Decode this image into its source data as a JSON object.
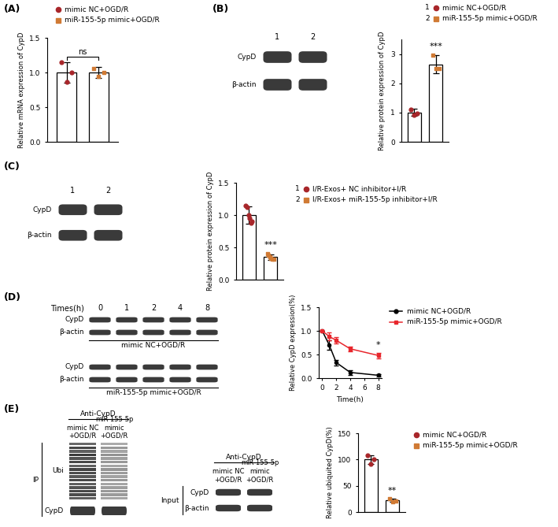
{
  "chart_data": [
    {
      "type": "bar",
      "panel": "(A)",
      "ylabel": "Relative mRNA expression of CypD",
      "categories": [
        null,
        null
      ],
      "ylim": [
        0,
        1.5
      ],
      "yticks": [
        {
          "value": 0,
          "label": "0.0"
        },
        0.5,
        {
          "value": 1,
          "label": "1.0"
        },
        1.5
      ],
      "tick_labels": "y",
      "annotation": {
        "text": "ns",
        "over": [
          0,
          1
        ]
      },
      "series": [
        {
          "name": "mimic NC+OGD/R",
          "color": "#a8262a",
          "marker": "circle",
          "values": [
            1.0,
            null
          ],
          "errors": [
            0.15,
            null
          ],
          "points": [
            [
              1.15,
              0.86,
              1.0
            ],
            null
          ]
        },
        {
          "name": "miR-155-5p mimic+OGD/R",
          "color": "#d07a34",
          "marker": "square",
          "values": [
            null,
            1.0
          ],
          "errors": [
            null,
            0.08
          ],
          "points": [
            null,
            [
              1.06,
              0.94,
              1.0
            ]
          ]
        }
      ]
    },
    {
      "type": "bar",
      "panel": "(B)",
      "ylabel": "Relative protein expression of CypD",
      "categories": [
        null,
        null
      ],
      "ylim": [
        0,
        3.5
      ],
      "yticks": [
        0,
        1,
        2,
        3
      ],
      "tick_labels": "y",
      "annotation": {
        "text": "***",
        "over": [
          1
        ]
      },
      "series": [
        {
          "name": "mimic NC+OGD/R",
          "lane": "1",
          "color": "#a8262a",
          "marker": "circle",
          "values": [
            1.0,
            null
          ],
          "errors": [
            0.12,
            null
          ],
          "points": [
            [
              1.1,
              0.92,
              0.98
            ],
            null
          ]
        },
        {
          "name": "miR-155-5p mimic+OGD/R",
          "lane": "2",
          "color": "#d07a34",
          "marker": "square",
          "values": [
            null,
            2.65
          ],
          "errors": [
            null,
            0.3
          ],
          "points": [
            null,
            [
              2.95,
              2.5,
              2.5
            ]
          ]
        }
      ]
    },
    {
      "type": "bar",
      "panel": "(C)",
      "ylabel": "Relative protein expression of CypD",
      "categories": [
        null,
        null
      ],
      "ylim": [
        0,
        1.5
      ],
      "yticks": [
        {
          "value": 0,
          "label": "0.0"
        },
        0.5,
        {
          "value": 1,
          "label": "1.0"
        },
        1.5
      ],
      "tick_labels": "y",
      "annotation": {
        "text": "***",
        "over": [
          1
        ]
      },
      "series": [
        {
          "name": "I/R-Exos+ NC inhibitor+I/R",
          "lane": "1",
          "color": "#a8262a",
          "marker": "circle",
          "values": [
            1.0,
            null
          ],
          "errors": [
            0.13,
            null
          ],
          "points": [
            [
              1.15,
              1.12,
              1.0,
              0.95,
              0.88,
              0.9
            ],
            null
          ]
        },
        {
          "name": "I/R-Exos+ miR-155-5p inhibitor+I/R",
          "lane": "2",
          "color": "#d07a34",
          "marker": "square",
          "values": [
            null,
            0.35
          ],
          "errors": [
            null,
            0.04
          ],
          "points": [
            null,
            [
              0.4,
              0.38,
              0.35,
              0.33,
              0.32,
              0.32
            ]
          ]
        }
      ]
    },
    {
      "type": "line",
      "panel": "(D)",
      "xlabel": "Time(h)",
      "ylabel": "Relative CypD expression(%)",
      "x": [
        0,
        1,
        2,
        4,
        8
      ],
      "xlim": [
        -0.5,
        8.5
      ],
      "xticks": [
        0,
        2,
        4,
        6,
        8
      ],
      "ylim": [
        0,
        1.5
      ],
      "yticks": [
        {
          "value": 0,
          "label": "0.0"
        },
        0.5,
        {
          "value": 1,
          "label": "1.0"
        },
        1.5
      ],
      "annotation": {
        "text": "*",
        "over": [
          4
        ]
      },
      "series": [
        {
          "name": "mimic NC+OGD/R",
          "color": "#000000",
          "marker": "circle",
          "values": [
            1.0,
            0.7,
            0.33,
            0.12,
            0.06
          ],
          "errors": [
            0,
            0.1,
            0.06,
            0.05,
            0.03
          ]
        },
        {
          "name": "miR-155-5p mimic+OGD/R",
          "color": "#e8262c",
          "marker": "square",
          "values": [
            1.0,
            0.88,
            0.8,
            0.62,
            0.48
          ],
          "errors": [
            0,
            0.08,
            0.06,
            0.05,
            0.06
          ]
        }
      ]
    },
    {
      "type": "bar",
      "panel": "(E)",
      "ylabel": "Relative ubiquited CypD(%)",
      "categories": [
        null,
        null
      ],
      "ylim": [
        0,
        150
      ],
      "yticks": [
        0,
        50,
        100,
        150
      ],
      "tick_labels": "y",
      "annotation": {
        "text": "**",
        "over": [
          1
        ]
      },
      "series": [
        {
          "name": "mimic NC+OGD/R",
          "color": "#a8262a",
          "marker": "circle",
          "values": [
            100,
            null
          ],
          "errors": [
            8,
            null
          ],
          "points": [
            [
              108,
              92,
              100
            ],
            null
          ]
        },
        {
          "name": "miR-155-5p mimic+OGD/R",
          "color": "#d07a34",
          "marker": "square",
          "values": [
            null,
            22
          ],
          "errors": [
            null,
            3
          ],
          "points": [
            null,
            [
              25,
              20,
              21
            ]
          ]
        }
      ]
    }
  ],
  "blots": [
    {
      "lanes": [
        "1",
        "2"
      ],
      "rows": [
        "CypD",
        "β-actin"
      ]
    },
    {
      "lanes": [
        "1",
        "2"
      ],
      "rows": [
        "CypD",
        "β-actin"
      ]
    },
    {
      "lane_title": "Times(h)",
      "lanes": [
        "0",
        "1",
        "2",
        "4",
        "8"
      ],
      "groups": [
        {
          "caption": "mimic NC+OGD/R",
          "rows": [
            "CypD",
            "β-actin"
          ]
        },
        {
          "caption": "miR-155-5p mimic+OGD/R",
          "rows": [
            "CypD",
            "β-actin"
          ]
        }
      ]
    },
    {
      "header": "Anti-CypD",
      "lanes": [
        "mimic NC\n+OGD/R",
        "miR-155-5p\nmimic\n+OGD/R"
      ],
      "side_label": "IP",
      "rows": [
        "Ubi",
        "CypD"
      ]
    },
    {
      "header": "Anti-CypD",
      "lanes": [
        "mimic NC\n+OGD/R",
        "miR-155-5p\nmimic\n+OGD/R"
      ],
      "side_label": "Input",
      "rows": [
        "CypD",
        "β-actin"
      ]
    }
  ]
}
